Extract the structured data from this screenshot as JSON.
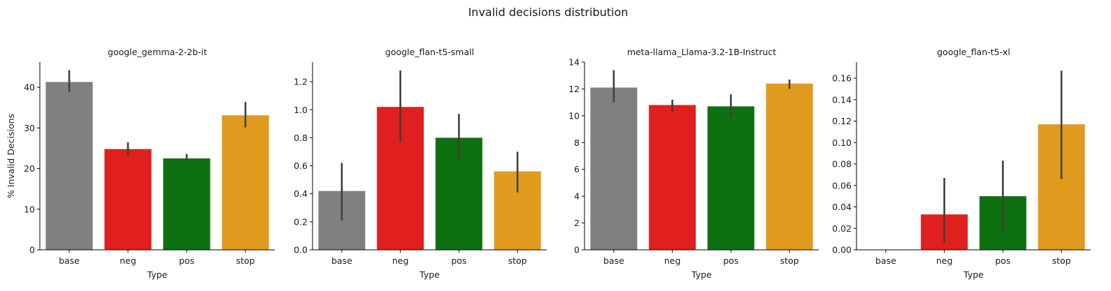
{
  "figure": {
    "title": "Invalid decisions distribution"
  },
  "chart_data": [
    {
      "type": "bar",
      "title": "google_gemma-2-2b-it",
      "xlabel": "Type",
      "ylabel": "% Invalid Decisions",
      "categories": [
        "base",
        "neg",
        "pos",
        "stop"
      ],
      "values": [
        41.3,
        24.8,
        22.5,
        33.1
      ],
      "error_low": [
        38.9,
        23.3,
        21.7,
        30.1
      ],
      "error_high": [
        44.2,
        26.5,
        23.6,
        36.4
      ],
      "colors": [
        "#808080",
        "#e01f1f",
        "#0d7011",
        "#e09b1e"
      ],
      "ylim": [
        0,
        46.2
      ],
      "yticks": [
        0,
        10,
        20,
        30,
        40
      ],
      "ytick_labels": [
        "0",
        "10",
        "20",
        "30",
        "40"
      ]
    },
    {
      "type": "bar",
      "title": "google_flan-t5-small",
      "xlabel": "Type",
      "ylabel": "",
      "categories": [
        "base",
        "neg",
        "pos",
        "stop"
      ],
      "values": [
        0.42,
        1.02,
        0.8,
        0.56
      ],
      "error_low": [
        0.21,
        0.77,
        0.63,
        0.41
      ],
      "error_high": [
        0.62,
        1.28,
        0.97,
        0.7
      ],
      "colors": [
        "#808080",
        "#e01f1f",
        "#0d7011",
        "#e09b1e"
      ],
      "ylim": [
        0,
        1.34
      ],
      "yticks": [
        0,
        0.2,
        0.4,
        0.6,
        0.8,
        1.0,
        1.2
      ],
      "ytick_labels": [
        "0.0",
        "0.2",
        "0.4",
        "0.6",
        "0.8",
        "1.0",
        "1.2"
      ]
    },
    {
      "type": "bar",
      "title": "meta-llama_Llama-3.2-1B-Instruct",
      "xlabel": "Type",
      "ylabel": "",
      "categories": [
        "base",
        "neg",
        "pos",
        "stop"
      ],
      "values": [
        12.1,
        10.8,
        10.7,
        12.4
      ],
      "error_low": [
        11.0,
        10.3,
        9.9,
        12.0
      ],
      "error_high": [
        13.4,
        11.2,
        11.6,
        12.7
      ],
      "colors": [
        "#808080",
        "#e01f1f",
        "#0d7011",
        "#e09b1e"
      ],
      "ylim": [
        0,
        14
      ],
      "yticks": [
        0,
        2,
        4,
        6,
        8,
        10,
        12,
        14
      ],
      "ytick_labels": [
        "0",
        "2",
        "4",
        "6",
        "8",
        "10",
        "12",
        "14"
      ]
    },
    {
      "type": "bar",
      "title": "google_flan-t5-xl",
      "xlabel": "Type",
      "ylabel": "",
      "categories": [
        "base",
        "neg",
        "pos",
        "stop"
      ],
      "values": [
        0.0,
        0.033,
        0.05,
        0.117
      ],
      "error_low": [
        0.0,
        0.007,
        0.015,
        0.066
      ],
      "error_high": [
        0.0,
        0.067,
        0.083,
        0.167
      ],
      "colors": [
        "#808080",
        "#e01f1f",
        "#0d7011",
        "#e09b1e"
      ],
      "ylim": [
        0,
        0.175
      ],
      "yticks": [
        0,
        0.02,
        0.04,
        0.06,
        0.08,
        0.1,
        0.12,
        0.14,
        0.16
      ],
      "ytick_labels": [
        "0.00",
        "0.02",
        "0.04",
        "0.06",
        "0.08",
        "0.10",
        "0.12",
        "0.14",
        "0.16"
      ]
    }
  ]
}
